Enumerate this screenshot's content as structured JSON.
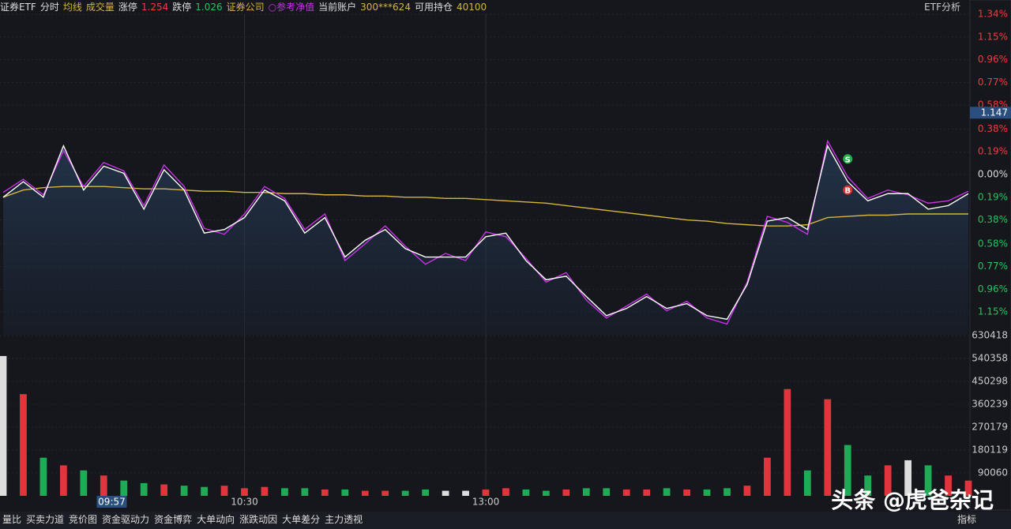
{
  "header": {
    "items": [
      "证券ETF",
      "分时",
      "均线",
      "成交量",
      "涨停",
      "1.254",
      "跌停",
      "1.026",
      "证券公司",
      "○参考净值",
      "当前账户",
      "300***624",
      "可用持仓",
      "40100"
    ],
    "right_button": "ETF分析"
  },
  "chart_data": {
    "type": "line",
    "x": [
      0,
      5,
      10,
      15,
      20,
      25,
      30,
      35,
      40,
      45,
      50,
      55,
      60,
      65,
      70,
      75,
      80,
      85,
      90,
      95,
      100,
      105,
      110,
      115,
      120,
      125,
      130,
      135,
      140,
      145,
      150,
      155,
      160,
      165,
      170,
      175,
      180,
      185,
      190,
      195,
      200,
      205,
      210,
      215,
      220,
      225,
      230,
      235,
      240
    ],
    "xlim": [
      0,
      240
    ],
    "xticks": [
      {
        "value": 60,
        "label": "10:30"
      },
      {
        "value": 120,
        "label": "13:00"
      }
    ],
    "cursor": {
      "value": 27,
      "label": "09:57"
    },
    "price_label": "1.147",
    "ylim": [
      -1.34,
      1.34
    ],
    "yticks": [
      {
        "value": 1.34,
        "label": "1.34%"
      },
      {
        "value": 1.15,
        "label": "1.15%"
      },
      {
        "value": 0.96,
        "label": "0.96%"
      },
      {
        "value": 0.77,
        "label": "0.77%"
      },
      {
        "value": 0.58,
        "label": "0.58%"
      },
      {
        "value": 0.38,
        "label": "0.38%"
      },
      {
        "value": 0.19,
        "label": "0.19%"
      },
      {
        "value": 0,
        "label": "0.00%"
      },
      {
        "value": -0.19,
        "label": "0.19%"
      },
      {
        "value": -0.38,
        "label": "0.38%"
      },
      {
        "value": -0.58,
        "label": "0.58%"
      },
      {
        "value": -0.77,
        "label": "0.77%"
      },
      {
        "value": -0.96,
        "label": "0.96%"
      },
      {
        "value": -1.15,
        "label": "1.15%"
      }
    ],
    "series": [
      {
        "name": "分时",
        "color": "#ffffff",
        "values": [
          -0.19,
          -0.06,
          -0.19,
          0.24,
          -0.13,
          0.07,
          0.01,
          -0.29,
          0.04,
          -0.13,
          -0.49,
          -0.46,
          -0.36,
          -0.13,
          -0.22,
          -0.49,
          -0.36,
          -0.69,
          -0.55,
          -0.46,
          -0.62,
          -0.69,
          -0.69,
          -0.69,
          -0.52,
          -0.49,
          -0.72,
          -0.88,
          -0.85,
          -1.02,
          -1.18,
          -1.12,
          -1.02,
          -1.12,
          -1.08,
          -1.18,
          -1.21,
          -0.92,
          -0.39,
          -0.36,
          -0.46,
          0.24,
          -0.06,
          -0.22,
          -0.16,
          -0.16,
          -0.29,
          -0.26,
          -0.16
        ]
      },
      {
        "name": "参考净值",
        "color": "#c832e6",
        "values": [
          -0.15,
          -0.04,
          -0.17,
          0.2,
          -0.1,
          0.1,
          0.03,
          -0.26,
          0.08,
          -0.1,
          -0.45,
          -0.5,
          -0.33,
          -0.1,
          -0.2,
          -0.46,
          -0.33,
          -0.72,
          -0.58,
          -0.43,
          -0.6,
          -0.75,
          -0.66,
          -0.72,
          -0.48,
          -0.52,
          -0.7,
          -0.9,
          -0.82,
          -1.05,
          -1.2,
          -1.1,
          -1.0,
          -1.14,
          -1.06,
          -1.2,
          -1.25,
          -0.9,
          -0.35,
          -0.4,
          -0.5,
          0.28,
          -0.02,
          -0.2,
          -0.13,
          -0.17,
          -0.24,
          -0.22,
          -0.14
        ]
      },
      {
        "name": "均线",
        "color": "#d7b43c",
        "values": [
          -0.19,
          -0.13,
          -0.11,
          -0.1,
          -0.1,
          -0.1,
          -0.11,
          -0.12,
          -0.12,
          -0.13,
          -0.14,
          -0.14,
          -0.15,
          -0.15,
          -0.16,
          -0.16,
          -0.17,
          -0.17,
          -0.18,
          -0.18,
          -0.19,
          -0.19,
          -0.2,
          -0.2,
          -0.21,
          -0.22,
          -0.23,
          -0.24,
          -0.26,
          -0.28,
          -0.3,
          -0.32,
          -0.34,
          -0.36,
          -0.38,
          -0.39,
          -0.41,
          -0.42,
          -0.43,
          -0.43,
          -0.42,
          -0.36,
          -0.35,
          -0.34,
          -0.34,
          -0.33,
          -0.33,
          -0.33,
          -0.33
        ]
      }
    ],
    "trades": [
      {
        "label": "S",
        "x": 210,
        "y": 0.13,
        "color": "#22b14c"
      },
      {
        "label": "B",
        "x": 210,
        "y": -0.13,
        "color": "#e03030"
      }
    ],
    "volume": {
      "ylim": [
        0,
        630418
      ],
      "yticks": [
        630418,
        540358,
        450298,
        360239,
        270179,
        180119,
        90060
      ],
      "values": [
        550000,
        400000,
        150000,
        120000,
        100000,
        80000,
        60000,
        50000,
        45000,
        40000,
        35000,
        40000,
        30000,
        35000,
        30000,
        30000,
        25000,
        25000,
        20000,
        20000,
        20000,
        25000,
        20000,
        20000,
        25000,
        30000,
        25000,
        20000,
        25000,
        30000,
        30000,
        25000,
        25000,
        30000,
        25000,
        25000,
        30000,
        40000,
        150000,
        420000,
        100000,
        380000,
        200000,
        80000,
        120000,
        140000,
        120000,
        80000,
        60000
      ]
    }
  },
  "tabs": [
    "量比",
    "买卖力道",
    "竞价图",
    "资金驱动力",
    "资金博弈",
    "大单动向",
    "涨跌动因",
    "大单差分",
    "主力透视"
  ],
  "tab_right": "指标",
  "watermark": "头条 @虎爸杂记"
}
